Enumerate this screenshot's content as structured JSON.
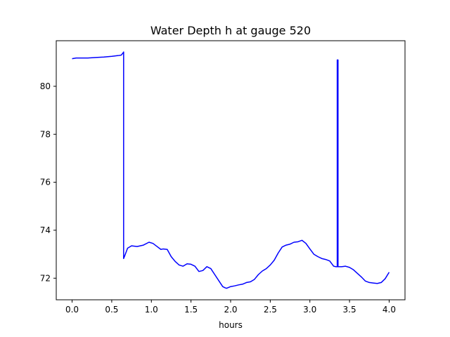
{
  "chart_data": {
    "type": "line",
    "title": "Water Depth h at gauge 520",
    "xlabel": "hours",
    "ylabel": "",
    "xlim": [
      -0.2,
      4.2
    ],
    "ylim": [
      71.1,
      81.9
    ],
    "xticks": [
      0.0,
      0.5,
      1.0,
      1.5,
      2.0,
      2.5,
      3.0,
      3.5,
      4.0
    ],
    "xtick_labels": [
      "0.0",
      "0.5",
      "1.0",
      "1.5",
      "2.0",
      "2.5",
      "3.0",
      "3.5",
      "4.0"
    ],
    "yticks": [
      72,
      74,
      76,
      78,
      80
    ],
    "ytick_labels": [
      "72",
      "74",
      "76",
      "78",
      "80"
    ],
    "grid": false,
    "series": [
      {
        "color": "#0000ff",
        "x": [
          0.0,
          0.05,
          0.1,
          0.2,
          0.3,
          0.4,
          0.5,
          0.58,
          0.62,
          0.64,
          0.65,
          0.65,
          0.66,
          0.7,
          0.75,
          0.82,
          0.9,
          0.97,
          1.02,
          1.08,
          1.12,
          1.15,
          1.2,
          1.25,
          1.3,
          1.35,
          1.4,
          1.45,
          1.5,
          1.55,
          1.6,
          1.65,
          1.7,
          1.75,
          1.8,
          1.85,
          1.9,
          1.93,
          1.95,
          2.0,
          2.05,
          2.1,
          2.15,
          2.2,
          2.25,
          2.3,
          2.35,
          2.4,
          2.45,
          2.5,
          2.55,
          2.6,
          2.65,
          2.7,
          2.75,
          2.8,
          2.85,
          2.9,
          2.95,
          3.0,
          3.05,
          3.1,
          3.15,
          3.2,
          3.25,
          3.3,
          3.33,
          3.345,
          3.345,
          3.355,
          3.355,
          3.4,
          3.45,
          3.5,
          3.55,
          3.6,
          3.65,
          3.7,
          3.75,
          3.8,
          3.85,
          3.9,
          3.95,
          4.0
        ],
        "y": [
          81.15,
          81.18,
          81.18,
          81.18,
          81.2,
          81.22,
          81.25,
          81.28,
          81.3,
          81.38,
          81.43,
          72.82,
          72.9,
          73.25,
          73.35,
          73.32,
          73.38,
          73.5,
          73.45,
          73.3,
          73.2,
          73.22,
          73.2,
          72.9,
          72.7,
          72.55,
          72.5,
          72.6,
          72.58,
          72.5,
          72.28,
          72.32,
          72.48,
          72.4,
          72.15,
          71.9,
          71.65,
          71.6,
          71.58,
          71.65,
          71.68,
          71.72,
          71.75,
          71.82,
          71.85,
          71.95,
          72.15,
          72.3,
          72.4,
          72.55,
          72.75,
          73.05,
          73.3,
          73.38,
          73.42,
          73.5,
          73.52,
          73.58,
          73.45,
          73.22,
          73.0,
          72.9,
          72.82,
          72.78,
          72.72,
          72.5,
          72.48,
          72.48,
          81.1,
          81.1,
          72.48,
          72.48,
          72.5,
          72.45,
          72.35,
          72.2,
          72.05,
          71.88,
          71.82,
          71.8,
          71.78,
          71.82,
          71.98,
          72.25
        ]
      }
    ]
  }
}
